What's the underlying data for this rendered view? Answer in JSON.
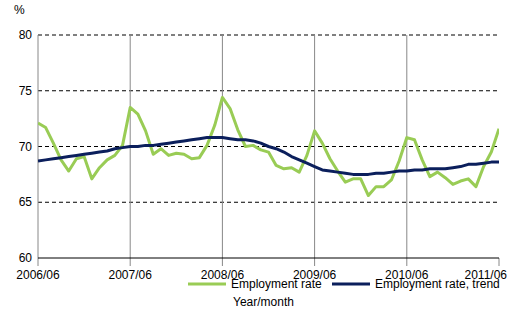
{
  "chart_data": {
    "type": "line",
    "y_label": "%",
    "x_label": "Year/month",
    "categories": [
      "2006/06",
      null,
      null,
      null,
      null,
      null,
      null,
      null,
      null,
      null,
      null,
      null,
      "2007/06",
      null,
      null,
      null,
      null,
      null,
      null,
      null,
      null,
      null,
      null,
      null,
      "2008/06",
      null,
      null,
      null,
      null,
      null,
      null,
      null,
      null,
      null,
      null,
      null,
      "2009/06",
      null,
      null,
      null,
      null,
      null,
      null,
      null,
      null,
      null,
      null,
      null,
      "2010/06",
      null,
      null,
      null,
      null,
      null,
      null,
      null,
      null,
      null,
      null,
      null,
      "2011/06"
    ],
    "series": [
      {
        "name": "Employment rate",
        "color": "#99cc55",
        "values": [
          72.1,
          71.7,
          70.3,
          68.8,
          67.8,
          68.9,
          69.1,
          67.1,
          68.1,
          68.8,
          69.2,
          70.1,
          73.5,
          72.9,
          71.4,
          69.3,
          69.8,
          69.2,
          69.4,
          69.3,
          68.9,
          69.0,
          70.1,
          71.9,
          74.4,
          73.4,
          71.5,
          70.0,
          70.1,
          69.7,
          69.5,
          68.3,
          68.0,
          68.1,
          67.7,
          69.2,
          71.4,
          70.3,
          68.9,
          67.8,
          66.8,
          67.1,
          67.1,
          65.6,
          66.4,
          66.4,
          67.0,
          68.7,
          70.8,
          70.6,
          68.8,
          67.3,
          67.7,
          67.2,
          66.6,
          66.9,
          67.1,
          66.4,
          68.2,
          69.5,
          71.6
        ]
      },
      {
        "name": "Employment rate, trend",
        "color": "#0b1f5c",
        "values": [
          68.7,
          68.8,
          68.9,
          69.0,
          69.1,
          69.2,
          69.3,
          69.4,
          69.5,
          69.6,
          69.8,
          69.9,
          70.0,
          70.0,
          70.1,
          70.1,
          70.2,
          70.3,
          70.4,
          70.5,
          70.6,
          70.7,
          70.8,
          70.8,
          70.8,
          70.7,
          70.6,
          70.6,
          70.5,
          70.3,
          70.0,
          69.8,
          69.5,
          69.1,
          68.8,
          68.5,
          68.2,
          67.9,
          67.8,
          67.7,
          67.6,
          67.5,
          67.5,
          67.5,
          67.6,
          67.6,
          67.7,
          67.8,
          67.8,
          67.9,
          67.9,
          68.0,
          68.0,
          68.0,
          68.1,
          68.2,
          68.4,
          68.4,
          68.5,
          68.6,
          68.6
        ]
      }
    ],
    "ylim": [
      60,
      80
    ],
    "yticks": [
      60,
      65,
      70,
      75,
      80
    ],
    "grid": true,
    "legend": "bottom"
  }
}
